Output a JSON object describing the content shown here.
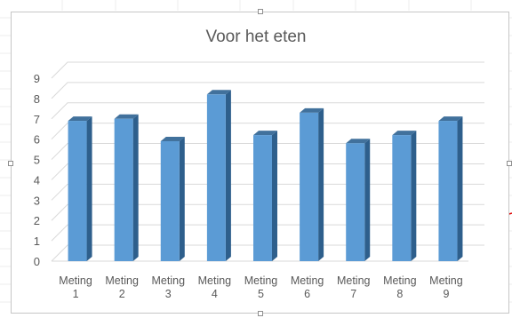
{
  "chart_data": {
    "type": "bar",
    "title": "Voor het eten",
    "categories": [
      [
        "Meting",
        "1"
      ],
      [
        "Meting",
        "2"
      ],
      [
        "Meting",
        "3"
      ],
      [
        "Meting",
        "4"
      ],
      [
        "Meting",
        "5"
      ],
      [
        "Meting",
        "6"
      ],
      [
        "Meting",
        "7"
      ],
      [
        "Meting",
        "8"
      ],
      [
        "Meting",
        "9"
      ]
    ],
    "values": [
      6.9,
      7.0,
      5.9,
      8.2,
      6.2,
      7.3,
      5.8,
      6.2,
      6.9
    ],
    "yticks": [
      "0",
      "1",
      "2",
      "3",
      "4",
      "5",
      "6",
      "7",
      "8",
      "9"
    ],
    "ylim": [
      0,
      9
    ],
    "grid": true,
    "style": "3d-clustered-column",
    "colors": {
      "bar_front": "#5b9bd5",
      "bar_side": "#2e5f8c",
      "bar_top": "#41719c",
      "gridline": "#d9d9d9",
      "axis_text": "#595959"
    }
  }
}
